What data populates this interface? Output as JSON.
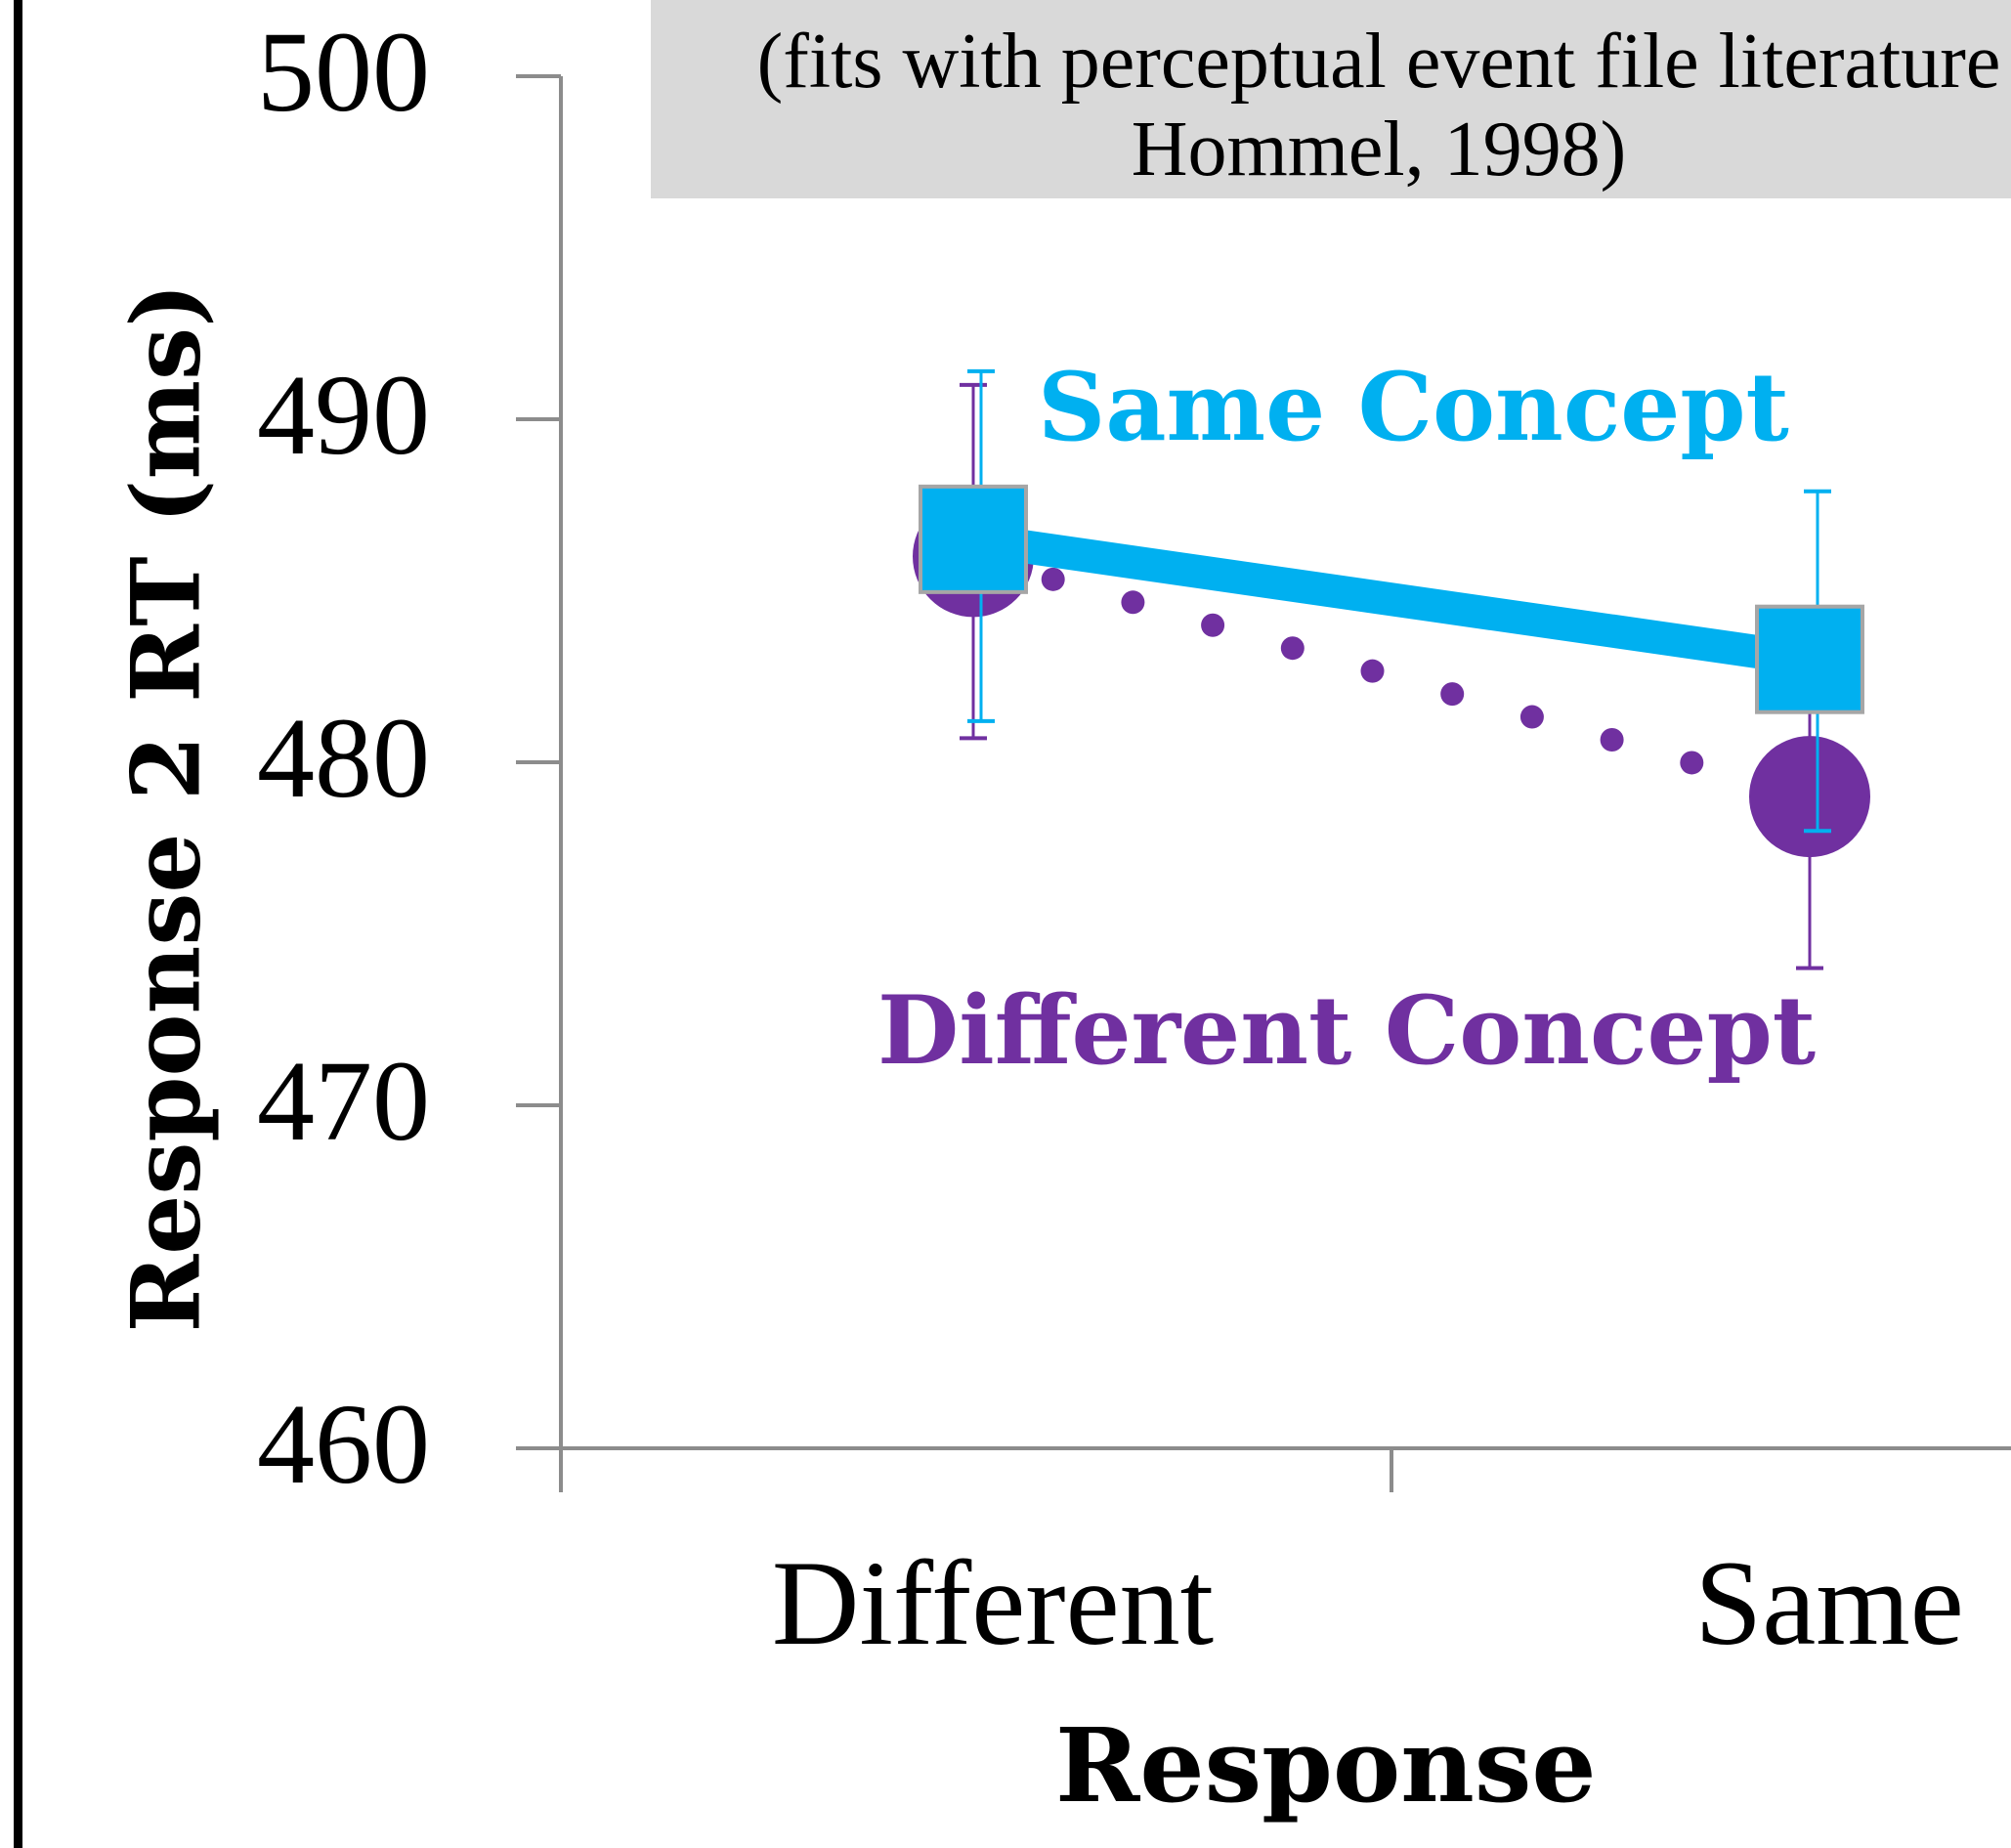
{
  "note": {
    "line1": "(fits with perceptual event file literature",
    "line2": "Hommel, 1998)"
  },
  "chart_data": {
    "type": "line",
    "title": "",
    "xlabel": "Response",
    "ylabel": "Response 2 RT (ms)",
    "categories": [
      "Different",
      "Same"
    ],
    "ylim": [
      460,
      500
    ],
    "yticks": [
      "460",
      "470",
      "480",
      "490",
      "500"
    ],
    "grid": false,
    "series": [
      {
        "name": "Same Concept",
        "values": [
          486.5,
          483.0
        ],
        "error_low": [
          481.2,
          478.0
        ],
        "error_high": [
          491.4,
          487.9
        ],
        "color": "#00b0f0",
        "marker": "square",
        "line_style": "solid"
      },
      {
        "name": "Different Concept",
        "values": [
          486.0,
          479.0
        ],
        "error_low": [
          480.7,
          474.0
        ],
        "error_high": [
          491.0,
          482.0
        ],
        "color": "#7030a0",
        "marker": "circle",
        "line_style": "dotted"
      }
    ]
  }
}
